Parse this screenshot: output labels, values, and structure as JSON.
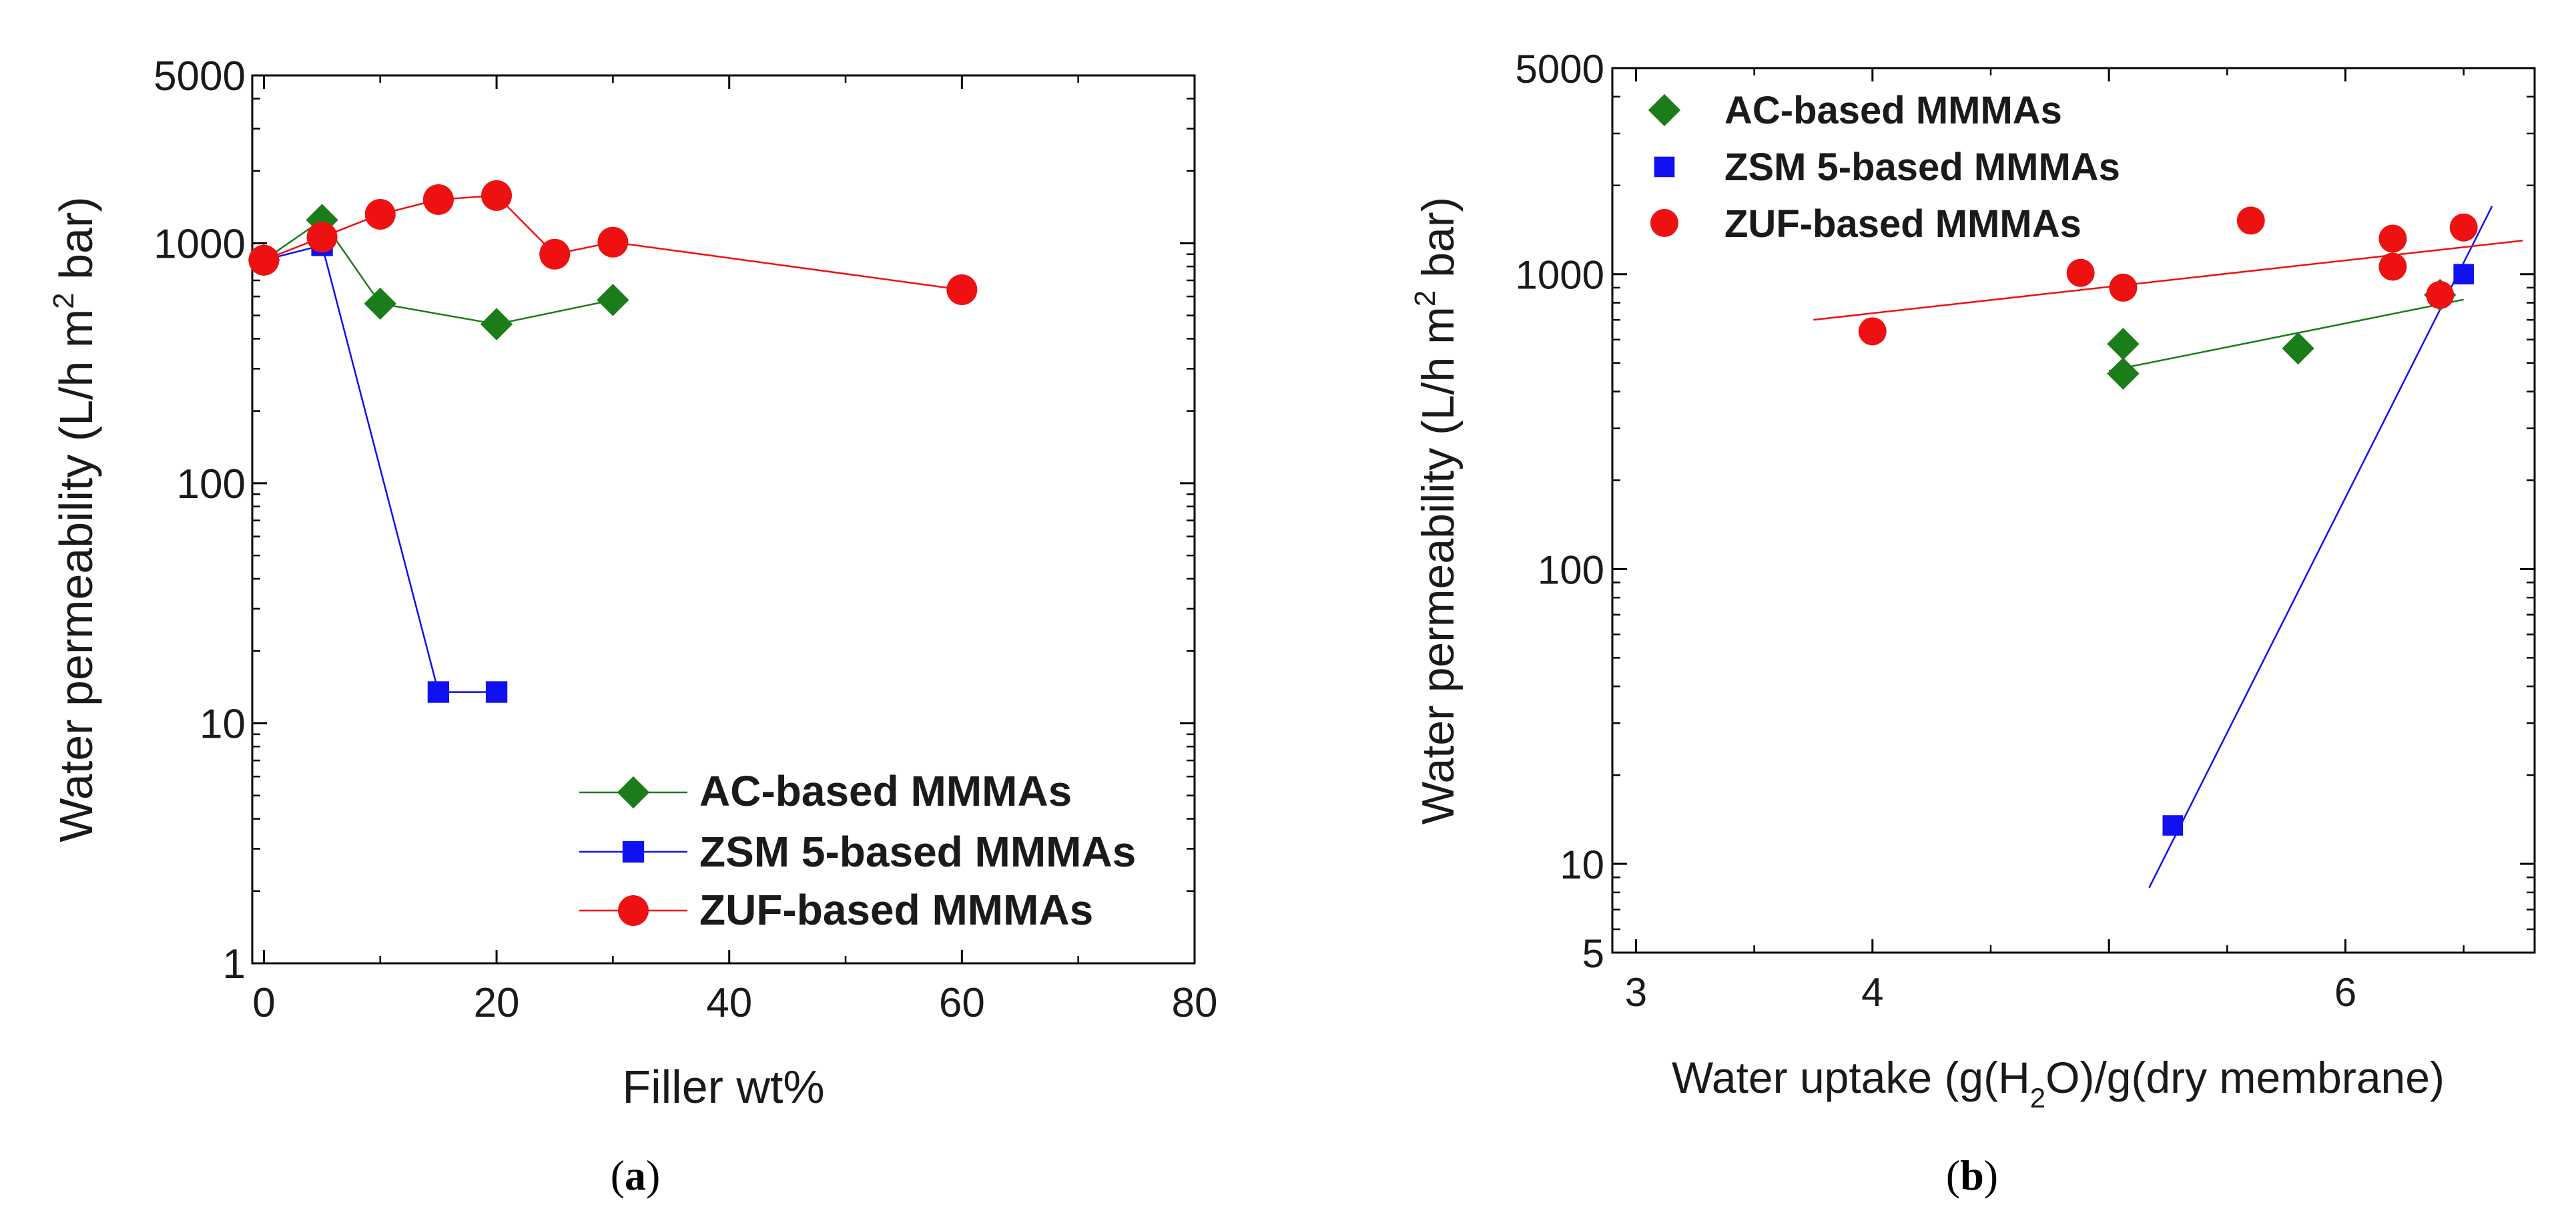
{
  "chart_data": [
    {
      "panel": "(a)",
      "panel_letter": "a",
      "type": "line",
      "title": "",
      "xlabel": "Filler wt%",
      "ylabel": "Water permeability (L/h m² bar)",
      "ylabel_parts": [
        "Water permeability (L/h m",
        "2",
        " bar)"
      ],
      "xlim": [
        -1,
        80
      ],
      "ylim": [
        1,
        5000
      ],
      "yscale": "log",
      "xticks": [
        0,
        20,
        40,
        60,
        80
      ],
      "xtick_labels": [
        "0",
        "20",
        "40",
        "60",
        "80"
      ],
      "yticks": [
        1,
        10,
        100,
        1000,
        5000
      ],
      "ytick_labels": [
        "1",
        "10",
        "100",
        "1000",
        "5000"
      ],
      "legend_position": "bottom-right",
      "series": [
        {
          "name": "AC-based MMMAs",
          "color": "#1a7d1a",
          "marker": "diamond",
          "line_color": "#1a7d1a",
          "x": [
            0,
            5,
            10,
            20,
            30
          ],
          "y": [
            850,
            1250,
            560,
            460,
            580
          ]
        },
        {
          "name": "ZSM 5-based MMMAs",
          "color": "#1010f0",
          "marker": "square",
          "line_color": "#1010f0",
          "x": [
            0,
            5,
            15,
            20
          ],
          "y": [
            850,
            980,
            13.5,
            13.5
          ]
        },
        {
          "name": "ZUF-based MMMAs",
          "color": "#ee1111",
          "marker": "circle",
          "line_color": "#ee1111",
          "x": [
            0,
            5,
            10,
            15,
            20,
            25,
            30,
            60
          ],
          "y": [
            850,
            1060,
            1320,
            1520,
            1580,
            900,
            1010,
            640
          ]
        }
      ]
    },
    {
      "panel": "(b)",
      "panel_letter": "b",
      "type": "scatter",
      "title": "",
      "xlabel": "Water uptake (g(H₂O)/g(dry membrane)",
      "xlabel_parts": [
        "Water uptake (g(H",
        "2",
        "O)/g(dry membrane)"
      ],
      "ylabel": "Water permeability (L/h m² bar)",
      "ylabel_parts": [
        "Water permeability (L/h m",
        "2",
        " bar)"
      ],
      "xlim": [
        2.9,
        6.8
      ],
      "ylim": [
        5,
        5000
      ],
      "yscale": "log",
      "xticks": [
        3,
        4,
        5,
        6
      ],
      "xtick_labels": [
        "3",
        "4",
        "",
        "6"
      ],
      "yticks": [
        5,
        10,
        100,
        1000,
        5000
      ],
      "ytick_labels": [
        "5",
        "10",
        "100",
        "1000",
        "5000"
      ],
      "legend_position": "top-left",
      "series": [
        {
          "name": "AC-based MMMAs",
          "color": "#1a7d1a",
          "marker": "diamond",
          "x": [
            5.06,
            5.06,
            5.8,
            6.4
          ],
          "y": [
            580,
            460,
            560,
            850
          ],
          "fit": {
            "x": [
              5.0,
              6.5
            ],
            "y": [
              470,
              820
            ]
          }
        },
        {
          "name": "ZSM 5-based MMMAs",
          "color": "#1010f0",
          "marker": "square",
          "x": [
            5.27,
            6.4,
            6.5
          ],
          "y": [
            13.5,
            850,
            1000
          ],
          "fit": {
            "x": [
              5.17,
              6.62
            ],
            "y": [
              8.3,
              1700
            ]
          }
        },
        {
          "name": "ZUF-based MMMAs",
          "color": "#ee1111",
          "marker": "circle",
          "x": [
            4.0,
            4.88,
            5.06,
            5.6,
            6.2,
            6.2,
            6.5,
            6.4
          ],
          "y": [
            640,
            1010,
            900,
            1520,
            1320,
            1060,
            1440,
            850
          ],
          "fit": {
            "x": [
              3.75,
              6.75
            ],
            "y": [
              700,
              1300
            ]
          }
        }
      ]
    }
  ]
}
